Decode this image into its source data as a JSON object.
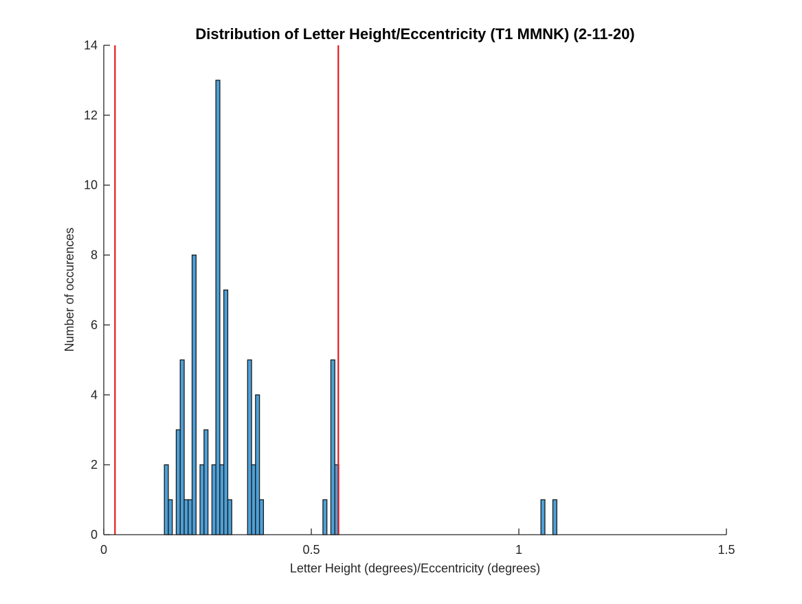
{
  "chart_data": {
    "type": "bar",
    "title": "Distribution of Letter Height/Eccentricity (T1 MMNK) (2-11-20)",
    "xlabel": "Letter Height (degrees)/Eccentricity (degrees)",
    "ylabel": "Number of occurences",
    "xlim": [
      0,
      1.5
    ],
    "ylim": [
      0,
      14
    ],
    "xticks": [
      "0",
      "0.5",
      "1",
      "1.5"
    ],
    "xtick_values": [
      0,
      0.5,
      1,
      1.5
    ],
    "yticks": [
      "0",
      "2",
      "4",
      "6",
      "8",
      "10",
      "12",
      "14"
    ],
    "ytick_values": [
      0,
      2,
      4,
      6,
      8,
      10,
      12,
      14
    ],
    "bin_width": 0.00955,
    "bin_left_edges": [
      0.146,
      0.1555,
      0.1651,
      0.1746,
      0.1842,
      0.1937,
      0.2033,
      0.2128,
      0.2224,
      0.2319,
      0.2415,
      0.251,
      0.2606,
      0.2701,
      0.2797,
      0.2892,
      0.2988,
      0.3083,
      0.3179,
      0.3274,
      0.337,
      0.3465,
      0.3561,
      0.3656,
      0.3752,
      0.3847,
      0.3943,
      0.4038,
      0.4134,
      0.4229,
      0.4325,
      0.442,
      0.4516,
      0.4611,
      0.4707,
      0.4802,
      0.4898,
      0.4993,
      0.5089,
      0.5184,
      0.528,
      0.5375,
      0.5471,
      0.5566,
      0.5662,
      0.5757,
      0.5853,
      0.5948,
      0.6044,
      0.6139,
      0.6235,
      0.633,
      0.6426,
      0.6521,
      0.6617,
      0.6712,
      0.6808,
      0.6903,
      0.6999,
      0.7094,
      0.719,
      0.7285,
      0.7381,
      0.7476,
      0.7572,
      0.7667,
      0.7763,
      0.7858,
      0.7954,
      0.8049,
      0.8145,
      0.824,
      0.8336,
      0.8431,
      0.8527,
      0.8622,
      0.8718,
      0.8813,
      0.8909,
      0.9004,
      0.91,
      0.9195,
      0.9291,
      0.9386,
      0.9482,
      0.9577,
      0.9673,
      0.9768,
      0.9864,
      0.9959,
      1.0055,
      1.015,
      1.0246,
      1.0341,
      1.0437,
      1.0532,
      1.0628,
      1.0723,
      1.0819
    ],
    "values": [
      2,
      1,
      0,
      3,
      5,
      1,
      1,
      8,
      0,
      2,
      3,
      0,
      2,
      13,
      2,
      7,
      1,
      0,
      0,
      0,
      0,
      5,
      2,
      4,
      1,
      0,
      0,
      0,
      0,
      0,
      0,
      0,
      0,
      0,
      0,
      0,
      0,
      0,
      0,
      0,
      1,
      0,
      5,
      2,
      0,
      0,
      0,
      0,
      0,
      0,
      0,
      0,
      0,
      0,
      0,
      0,
      0,
      0,
      0,
      0,
      0,
      0,
      0,
      0,
      0,
      0,
      0,
      0,
      0,
      0,
      0,
      0,
      0,
      0,
      0,
      0,
      0,
      0,
      0,
      0,
      0,
      0,
      0,
      0,
      0,
      0,
      0,
      0,
      0,
      0,
      0,
      0,
      0,
      0,
      0,
      1,
      0,
      0,
      1
    ],
    "reference_lines_x": [
      0.027,
      0.565
    ],
    "grid": false,
    "legend": "none",
    "colors": {
      "bar_fill": "#4da0d8",
      "reference_line": "#e41a1c"
    }
  }
}
